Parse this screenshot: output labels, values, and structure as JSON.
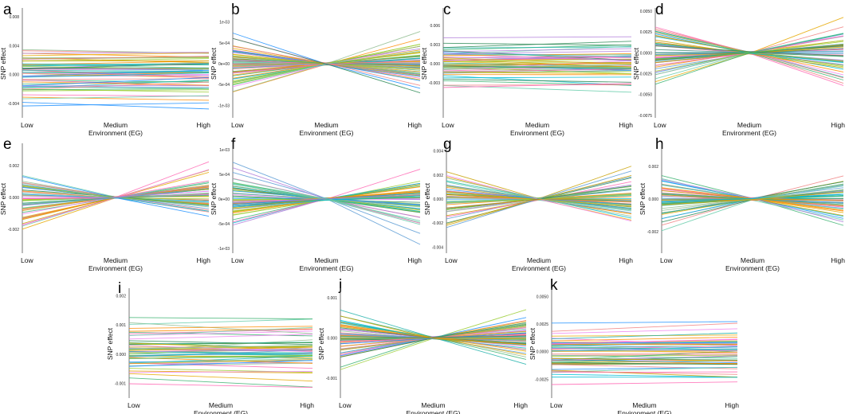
{
  "chart_data": [
    {
      "id": "a",
      "type": "line",
      "categories": [
        "Low",
        "Medium",
        "High"
      ],
      "xlabel": "Environment (EG)",
      "ylabel": "SNP effect",
      "ylim": [
        -0.006,
        0.009
      ],
      "yticks": [
        "0.008",
        "0.004",
        "0.000",
        "-0.004"
      ],
      "ytick_values": [
        0.008,
        0.004,
        0.0,
        -0.004
      ],
      "pattern": "parallel",
      "n_series": 55,
      "seed": 11
    },
    {
      "id": "b",
      "type": "line",
      "categories": [
        "Low",
        "Medium",
        "High"
      ],
      "xlabel": "Environment (EG)",
      "ylabel": "SNP effect",
      "ylim": [
        -0.0013,
        0.0013
      ],
      "yticks": [
        "1e-03",
        "5e-04",
        "0e+00",
        "-5e-04",
        "-1e-03"
      ],
      "ytick_values": [
        0.001,
        0.0005,
        0.0,
        -0.0005,
        -0.001
      ],
      "pattern": "cross",
      "n_series": 60,
      "seed": 23
    },
    {
      "id": "c",
      "type": "line",
      "categories": [
        "Low",
        "Medium",
        "High"
      ],
      "xlabel": "Environment (EG)",
      "ylabel": "SNP effect",
      "ylim": [
        -0.0085,
        0.0085
      ],
      "yticks": [
        "0.006",
        "0.003",
        "0.000",
        "-0.003"
      ],
      "ytick_values": [
        0.006,
        0.003,
        0.0,
        -0.003
      ],
      "pattern": "parallel",
      "n_series": 55,
      "seed": 37
    },
    {
      "id": "d",
      "type": "line",
      "categories": [
        "Low",
        "Medium",
        "High"
      ],
      "xlabel": "Environment (EG)",
      "ylabel": "SNP effect",
      "ylim": [
        -0.0078,
        0.0052
      ],
      "yticks": [
        "0.0050",
        "0.0025",
        "0.0000",
        "-0.0025",
        "-0.0050",
        "-0.0075"
      ],
      "ytick_values": [
        0.005,
        0.0025,
        0.0,
        -0.0025,
        -0.005,
        -0.0075
      ],
      "pattern": "cross",
      "n_series": 60,
      "seed": 41
    },
    {
      "id": "e",
      "type": "line",
      "categories": [
        "Low",
        "Medium",
        "High"
      ],
      "xlabel": "Environment (EG)",
      "ylabel": "SNP effect",
      "ylim": [
        -0.0035,
        0.0033
      ],
      "yticks": [
        "0.002",
        "0.000",
        "-0.002"
      ],
      "ytick_values": [
        0.002,
        0.0,
        -0.002
      ],
      "pattern": "cross",
      "n_series": 55,
      "seed": 53
    },
    {
      "id": "f",
      "type": "line",
      "categories": [
        "Low",
        "Medium",
        "High"
      ],
      "xlabel": "Environment (EG)",
      "ylabel": "SNP effect",
      "ylim": [
        -0.0011,
        0.0011
      ],
      "yticks": [
        "1e-03",
        "5e-04",
        "0e+00",
        "-5e-04",
        "-1e-03"
      ],
      "ytick_values": [
        0.001,
        0.0005,
        0.0,
        -0.0005,
        -0.001
      ],
      "pattern": "cross",
      "n_series": 60,
      "seed": 67
    },
    {
      "id": "g",
      "type": "line",
      "categories": [
        "Low",
        "Medium",
        "High"
      ],
      "xlabel": "Environment (EG)",
      "ylabel": "SNP effect",
      "ylim": [
        -0.0045,
        0.0045
      ],
      "yticks": [
        "0.004",
        "0.002",
        "0.000",
        "-0.002",
        "-0.004"
      ],
      "ytick_values": [
        0.004,
        0.002,
        0.0,
        -0.002,
        -0.004
      ],
      "pattern": "cross",
      "n_series": 55,
      "seed": 71
    },
    {
      "id": "h",
      "type": "line",
      "categories": [
        "Low",
        "Medium",
        "High"
      ],
      "xlabel": "Environment (EG)",
      "ylabel": "SNP effect",
      "ylim": [
        -0.0033,
        0.0033
      ],
      "yticks": [
        "0.002",
        "0.000",
        "-0.002"
      ],
      "ytick_values": [
        0.002,
        0.0,
        -0.002
      ],
      "pattern": "cross",
      "n_series": 55,
      "seed": 83
    },
    {
      "id": "i",
      "type": "line",
      "categories": [
        "Low",
        "Medium",
        "High"
      ],
      "xlabel": "Environment (EG)",
      "ylabel": "SNP effect",
      "ylim": [
        -0.0015,
        0.0022
      ],
      "yticks": [
        "0.002",
        "0.001",
        "0.000",
        "-0.001"
      ],
      "ytick_values": [
        0.002,
        0.001,
        0.0,
        -0.001
      ],
      "pattern": "parallel",
      "n_series": 55,
      "seed": 97
    },
    {
      "id": "j",
      "type": "line",
      "categories": [
        "Low",
        "Medium",
        "High"
      ],
      "xlabel": "Environment (EG)",
      "ylabel": "SNP effect",
      "ylim": [
        -0.0015,
        0.0012
      ],
      "yticks": [
        "0.001",
        "0.000",
        "-0.001"
      ],
      "ytick_values": [
        0.001,
        0.0,
        -0.001
      ],
      "pattern": "cross",
      "n_series": 60,
      "seed": 101
    },
    {
      "id": "k",
      "type": "line",
      "categories": [
        "Low",
        "Medium",
        "High"
      ],
      "xlabel": "Environment (EG)",
      "ylabel": "SNP effect",
      "ylim": [
        -0.0042,
        0.0056
      ],
      "yticks": [
        "0.0050",
        "0.0025",
        "0.0000",
        "-0.0025"
      ],
      "ytick_values": [
        0.005,
        0.0025,
        0.0,
        -0.0025
      ],
      "pattern": "parallel",
      "n_series": 55,
      "seed": 113
    }
  ],
  "palette": [
    "#e6a800",
    "#9acd32",
    "#3cb371",
    "#20b2aa",
    "#00bcd4",
    "#5b9bd5",
    "#b07cd9",
    "#ee82ee",
    "#ff69b4",
    "#f08080",
    "#ff8c00",
    "#c8a000",
    "#2e8b57",
    "#66cdaa",
    "#1e90ff",
    "#8fbc8f"
  ]
}
